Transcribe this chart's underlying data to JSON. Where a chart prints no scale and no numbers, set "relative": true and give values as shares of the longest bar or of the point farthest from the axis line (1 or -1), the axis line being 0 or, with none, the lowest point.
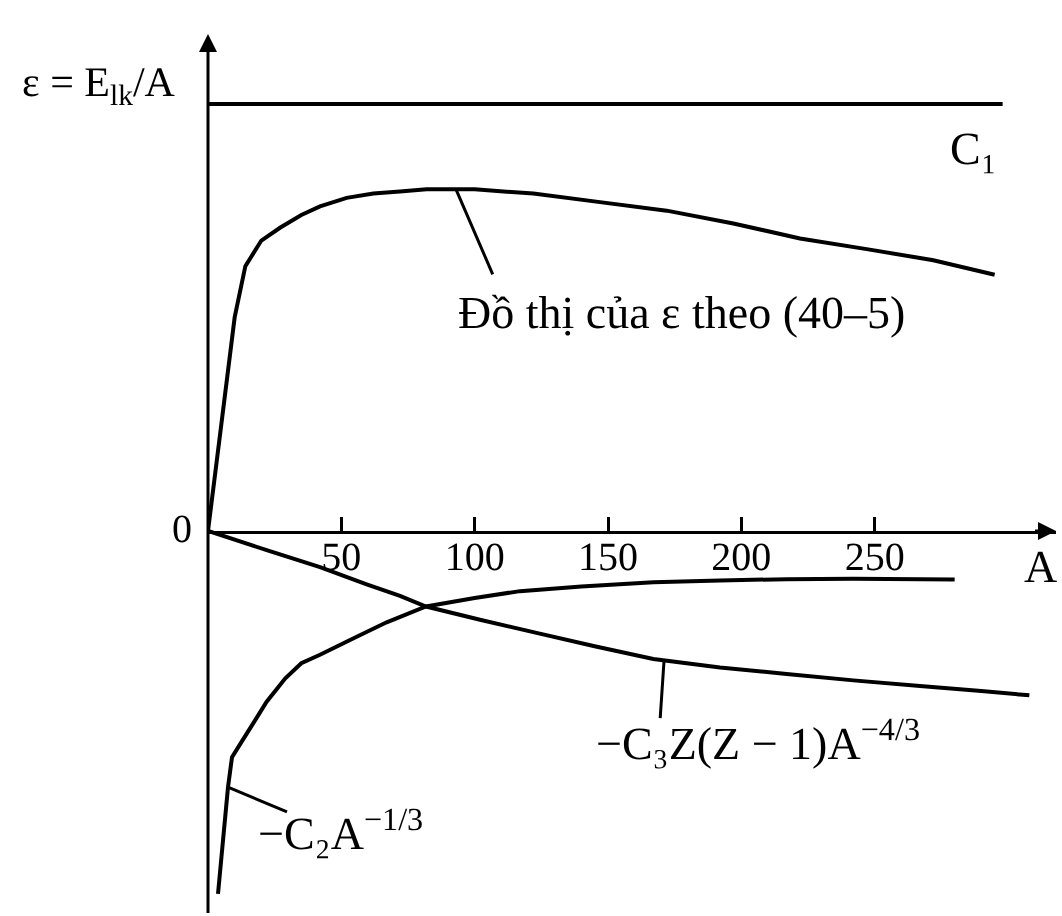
{
  "chart_data": {
    "type": "line",
    "ylabel": "ε = E$_{lk}$/A",
    "xlabel": "A",
    "relative": true,
    "xlim": [
      0,
      318
    ],
    "xticks": [
      50,
      100,
      150,
      200,
      250
    ],
    "annotations": [
      {
        "text": "0",
        "x": 0,
        "y": 0
      },
      {
        "text": "Đồ thị của ε theo (40–5)",
        "x": 93,
        "y": 0.8
      },
      {
        "text": "−C₃Z(Z − 1)A$^{−4/3}$",
        "x": 171,
        "y": -0.305
      },
      {
        "text": "−C₂A$^{−1/3}$",
        "x": 7.5,
        "y": -0.6
      }
    ],
    "series": [
      {
        "name": "C₁",
        "color": "#000000",
        "x": [
          0,
          298
        ],
        "values": [
          1,
          1
        ]
      },
      {
        "color": "#000000",
        "x": [
          0,
          5,
          10,
          14,
          20,
          27,
          35,
          42,
          52,
          62,
          72,
          82,
          92,
          100,
          122,
          147,
          172,
          197,
          222,
          247,
          272,
          295
        ],
        "values": [
          0,
          0.25,
          0.5,
          0.62,
          0.68,
          0.71,
          0.74,
          0.76,
          0.78,
          0.79,
          0.795,
          0.8,
          0.8,
          0.8,
          0.79,
          0.77,
          0.75,
          0.72,
          0.685,
          0.66,
          0.634,
          0.6
        ]
      },
      {
        "color": "#000000",
        "x": [
          0,
          22,
          42,
          59.5,
          72,
          81.75,
          102,
          124,
          145,
          167,
          192,
          217,
          242,
          267,
          290,
          308
        ],
        "values": [
          0,
          -0.045,
          -0.085,
          -0.125,
          -0.152,
          -0.177,
          -0.208,
          -0.24,
          -0.27,
          -0.3,
          -0.32,
          -0.335,
          -0.35,
          -0.363,
          -0.375,
          -0.385
        ]
      },
      {
        "color": "#000000",
        "x": [
          3.75,
          5.25,
          6.75,
          7.5,
          9,
          12,
          17,
          22,
          29,
          35,
          42,
          55,
          67,
          81.75,
          100,
          117,
          140,
          167,
          192,
          217,
          242,
          280
        ],
        "values": [
          -0.85,
          -0.75,
          -0.65,
          -0.6,
          -0.53,
          -0.5,
          -0.45,
          -0.4,
          -0.345,
          -0.31,
          -0.29,
          -0.25,
          -0.214,
          -0.177,
          -0.157,
          -0.141,
          -0.13,
          -0.12,
          -0.116,
          -0.113,
          -0.112,
          -0.114
        ]
      }
    ]
  }
}
